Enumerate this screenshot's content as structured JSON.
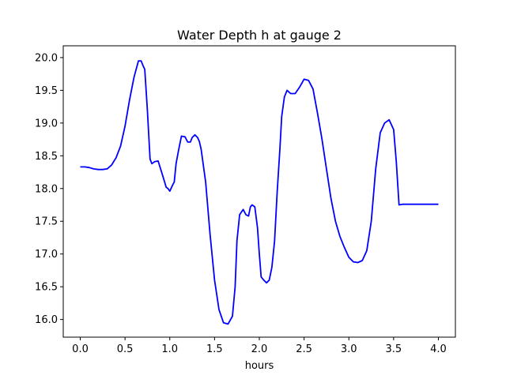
{
  "chart_data": {
    "type": "line",
    "title": "Water Depth h at gauge 2",
    "xlabel": "hours",
    "ylabel": "",
    "xlim": [
      -0.19,
      4.19
    ],
    "ylim": [
      15.73,
      20.18
    ],
    "xticks": [
      0.0,
      0.5,
      1.0,
      1.5,
      2.0,
      2.5,
      3.0,
      3.5,
      4.0
    ],
    "xtick_labels": [
      "0.0",
      "0.5",
      "1.0",
      "1.5",
      "2.0",
      "2.5",
      "3.0",
      "3.5",
      "4.0"
    ],
    "yticks": [
      16.0,
      16.5,
      17.0,
      17.5,
      18.0,
      18.5,
      19.0,
      19.5,
      20.0
    ],
    "ytick_labels": [
      "16.0",
      "16.5",
      "17.0",
      "17.5",
      "18.0",
      "18.5",
      "19.0",
      "19.5",
      "20.0"
    ],
    "grid": false,
    "legend": "none",
    "series": [
      {
        "color": "#0000ff",
        "x": [
          0.0,
          0.05,
          0.1,
          0.15,
          0.2,
          0.25,
          0.3,
          0.35,
          0.4,
          0.45,
          0.5,
          0.55,
          0.6,
          0.65,
          0.68,
          0.7,
          0.72,
          0.75,
          0.78,
          0.8,
          0.83,
          0.87,
          0.92,
          0.96,
          0.98,
          1.0,
          1.03,
          1.05,
          1.07,
          1.1,
          1.13,
          1.17,
          1.2,
          1.23,
          1.25,
          1.28,
          1.31,
          1.33,
          1.35,
          1.4,
          1.45,
          1.5,
          1.55,
          1.6,
          1.65,
          1.7,
          1.73,
          1.75,
          1.78,
          1.82,
          1.85,
          1.88,
          1.9,
          1.92,
          1.95,
          1.98,
          2.0,
          2.02,
          2.05,
          2.08,
          2.11,
          2.14,
          2.17,
          2.2,
          2.23,
          2.25,
          2.28,
          2.31,
          2.35,
          2.4,
          2.45,
          2.5,
          2.55,
          2.6,
          2.65,
          2.7,
          2.75,
          2.8,
          2.85,
          2.9,
          2.95,
          3.0,
          3.05,
          3.1,
          3.15,
          3.2,
          3.25,
          3.3,
          3.35,
          3.4,
          3.45,
          3.5,
          3.53,
          3.56,
          3.6,
          3.65,
          3.7,
          3.75,
          3.8,
          3.83,
          3.86,
          3.9,
          3.95,
          4.0
        ],
        "y": [
          18.33,
          18.33,
          18.32,
          18.3,
          18.29,
          18.29,
          18.3,
          18.36,
          18.47,
          18.65,
          18.95,
          19.35,
          19.7,
          19.95,
          19.95,
          19.88,
          19.82,
          19.2,
          18.45,
          18.38,
          18.41,
          18.42,
          18.2,
          18.02,
          18.0,
          17.96,
          18.05,
          18.1,
          18.38,
          18.6,
          18.8,
          18.79,
          18.71,
          18.71,
          18.78,
          18.82,
          18.78,
          18.72,
          18.6,
          18.1,
          17.3,
          16.6,
          16.15,
          15.95,
          15.93,
          16.05,
          16.5,
          17.2,
          17.6,
          17.68,
          17.6,
          17.58,
          17.72,
          17.75,
          17.72,
          17.4,
          17.0,
          16.65,
          16.6,
          16.56,
          16.6,
          16.8,
          17.2,
          17.95,
          18.6,
          19.1,
          19.4,
          19.5,
          19.45,
          19.45,
          19.55,
          19.67,
          19.65,
          19.52,
          19.15,
          18.75,
          18.3,
          17.85,
          17.5,
          17.27,
          17.1,
          16.95,
          16.88,
          16.87,
          16.9,
          17.05,
          17.5,
          18.3,
          18.85,
          19.0,
          19.05,
          18.9,
          18.4,
          17.75,
          17.76,
          17.76,
          17.76,
          17.76,
          17.76,
          17.76,
          17.76,
          17.76,
          17.76,
          17.76
        ]
      }
    ]
  }
}
